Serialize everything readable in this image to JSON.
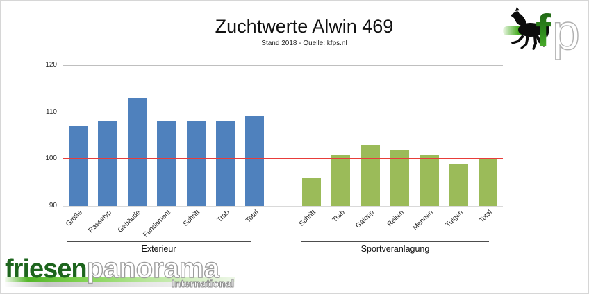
{
  "header": {
    "title": "Zuchtwerte Alwin 469",
    "subtitle": "Stand 2018 - Quelle: kfps.nl"
  },
  "chart_data": {
    "type": "bar",
    "title": "Zuchtwerte Alwin 469",
    "subtitle": "Stand 2018 - Quelle: kfps.nl",
    "ylim": [
      90,
      120
    ],
    "yticks": [
      90,
      100,
      110,
      120
    ],
    "reference_line": 100,
    "grid": true,
    "legend_position": "none",
    "groups": [
      {
        "label": "Exterieur",
        "color": "#4F81BD",
        "categories": [
          "Größe",
          "Rassetyp",
          "Gebäude",
          "Fundament",
          "Schritt",
          "Trab",
          "Total"
        ],
        "values": [
          107,
          108,
          113,
          108,
          108,
          108,
          109
        ]
      },
      {
        "label": "Sportveranlagung",
        "color": "#9BBB59",
        "categories": [
          "Schritt",
          "Trab",
          "Galopp",
          "Reiten",
          "Mennen",
          "Tuigen",
          "Total"
        ],
        "values": [
          96,
          101,
          103,
          102,
          101,
          99,
          100
        ]
      }
    ]
  },
  "colors": {
    "bar_blue": "#4F81BD",
    "bar_green": "#9BBB59",
    "reference_line": "#E83C3A",
    "gridline": "#BFBFBF",
    "axis_line": "#C3C3C3",
    "bottom_line": "#D9D9D9",
    "tick_text": "#262626"
  },
  "logo_top_right": {
    "horse_icon": "black-friesian-horse-silhouette",
    "letter_f": "f",
    "letter_p": "p"
  },
  "logo_bottom_left": {
    "word_green": "friesen",
    "word_outline": "panorama",
    "subtext": "International"
  }
}
